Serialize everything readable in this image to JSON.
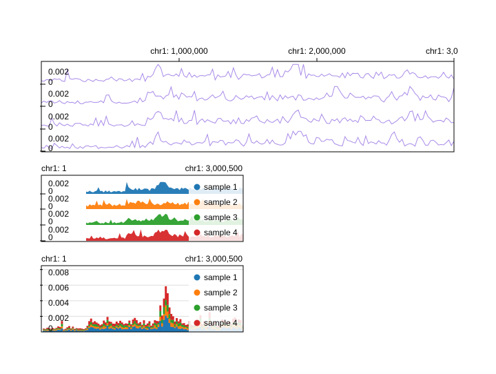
{
  "colors": {
    "top_line": "#a88ae8",
    "sample_1": "#1f77b4",
    "sample_2": "#ff7f0e",
    "sample_3": "#2ca02c",
    "sample_4": "#d62728",
    "frame": "#000000"
  },
  "chart_data": [
    {
      "type": "line",
      "x_ticks": [
        "chr1: 1,000,000",
        "chr1: 2,000,000",
        "chr1: 3,0"
      ],
      "tracks": [
        {
          "tick_labels": [
            "0.002",
            "0"
          ]
        },
        {
          "tick_labels": [
            "0.002",
            "0"
          ]
        },
        {
          "tick_labels": [
            "0.002",
            "0"
          ]
        },
        {
          "tick_labels": [
            "0.002",
            "0"
          ]
        }
      ],
      "xlim": [
        0,
        3000500
      ],
      "ylim": [
        0,
        0.0025
      ],
      "bins": 160
    },
    {
      "type": "area",
      "x_start_label": "chr1: 1",
      "x_end_label": "chr1: 3,000,500",
      "tracks": [
        {
          "tick_labels": [
            "0.002",
            "0"
          ]
        },
        {
          "tick_labels": [
            "0.002",
            "0"
          ]
        },
        {
          "tick_labels": [
            "0.002",
            "0"
          ]
        },
        {
          "tick_labels": [
            "0.002",
            "0"
          ]
        }
      ],
      "legend": [
        "sample 1",
        "sample 2",
        "sample 3",
        "sample 4"
      ],
      "legend_position": "right",
      "ylim": [
        0,
        0.0025
      ]
    },
    {
      "type": "bar",
      "stacked": true,
      "x_start_label": "chr1: 1",
      "x_end_label": "chr1: 3,000,500",
      "y_ticks": [
        "0",
        "0.002",
        "0.004",
        "0.006",
        "0.008"
      ],
      "ylim": [
        0,
        0.0085
      ],
      "grid": true,
      "legend": [
        "sample 1",
        "sample 2",
        "sample 3",
        "sample 4"
      ],
      "legend_position": "right"
    }
  ]
}
